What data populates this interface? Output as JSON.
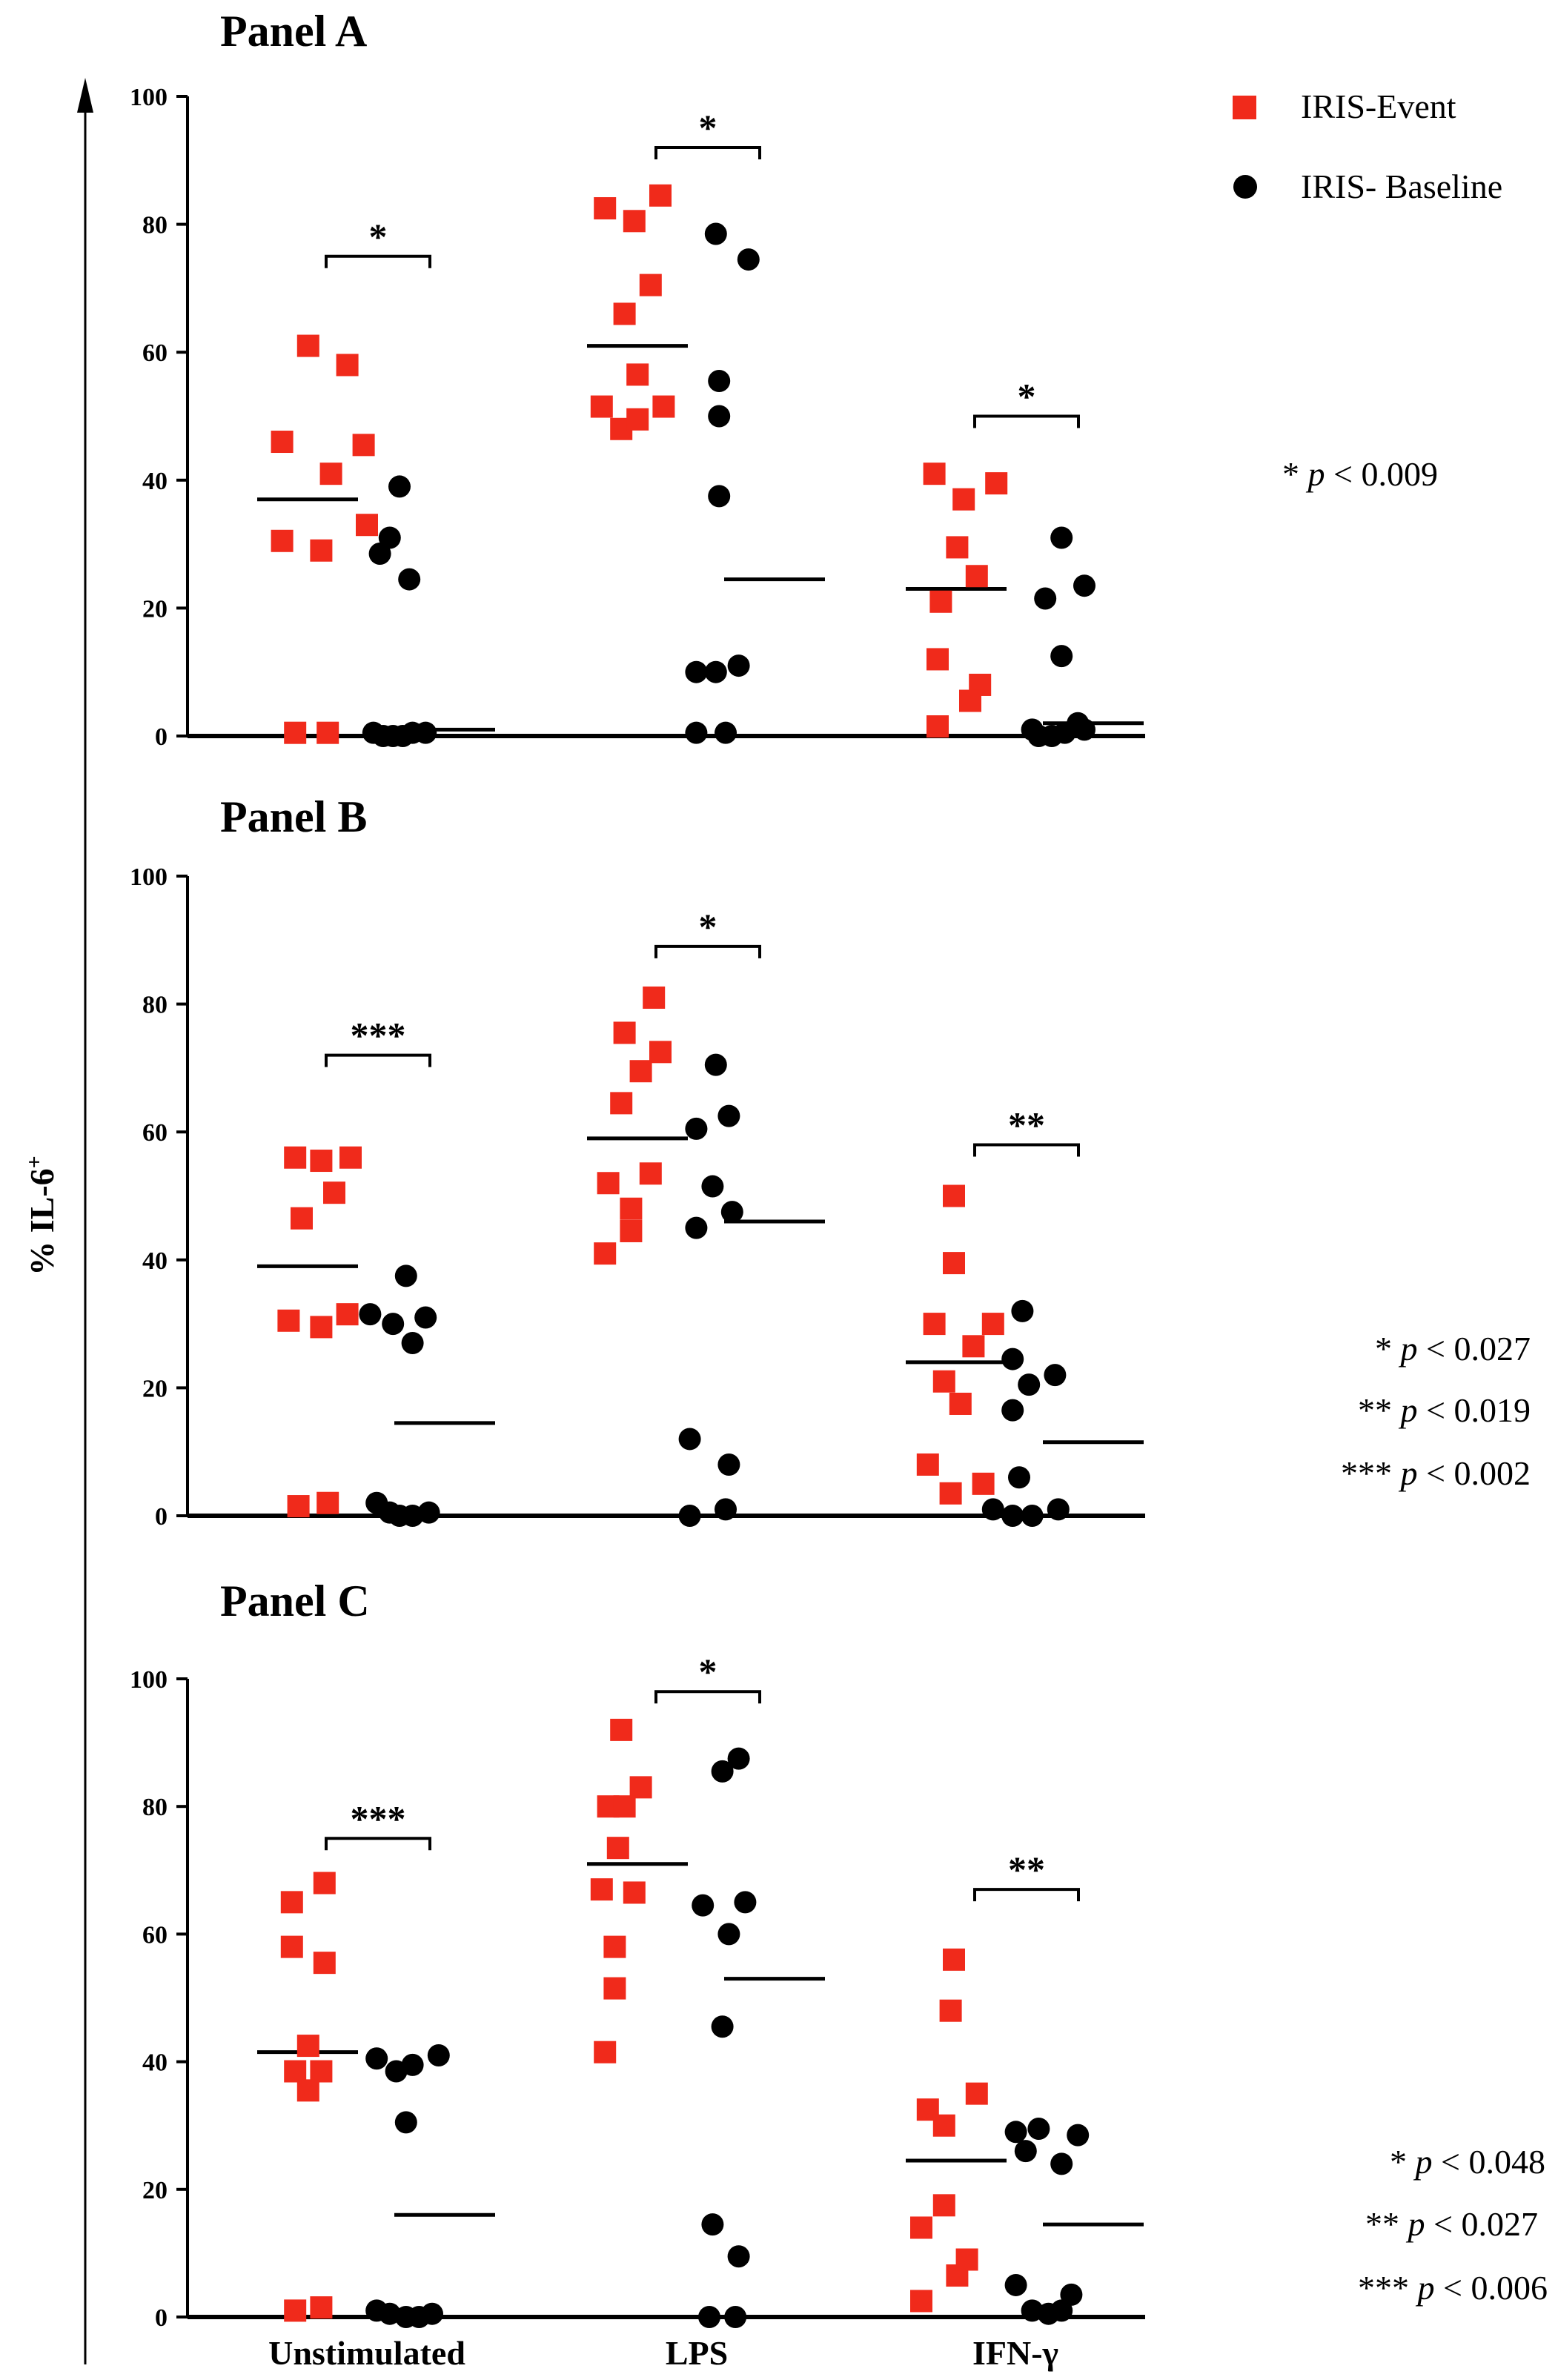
{
  "figure": {
    "ylabel": "% IL-6",
    "ylabel_sup": "+",
    "categories": [
      "Unstimulated",
      "LPS",
      "IFN-γ"
    ],
    "legend": [
      {
        "label": "IRIS-Event",
        "marker": "square",
        "color": "#f02a1b"
      },
      {
        "label": "IRIS- Baseline",
        "marker": "circle",
        "color": "#000000"
      }
    ]
  },
  "chart_data": [
    {
      "type": "scatter",
      "title": "Panel A",
      "ylim": [
        0,
        100
      ],
      "yticks": [
        0,
        20,
        40,
        60,
        80,
        100
      ],
      "categories": [
        "Unstimulated",
        "LPS",
        "IFN-γ"
      ],
      "series": [
        {
          "name": "IRIS-Event",
          "color": "#f02a1b",
          "marker": "square",
          "points": [
            {
              "x": 0.82,
              "y": 61
            },
            {
              "x": 0.89,
              "y": 41
            },
            {
              "x": 0.86,
              "y": 29
            },
            {
              "x": 0.74,
              "y": 46
            },
            {
              "x": 0.74,
              "y": 30.5
            },
            {
              "x": 0.78,
              "y": 0.5
            },
            {
              "x": 0.88,
              "y": 0.5
            },
            {
              "x": 0.94,
              "y": 58
            },
            {
              "x": 0.99,
              "y": 45.5
            },
            {
              "x": 1.0,
              "y": 33
            },
            {
              "x": 1.73,
              "y": 82.5
            },
            {
              "x": 1.82,
              "y": 80.5
            },
            {
              "x": 1.9,
              "y": 84.5
            },
            {
              "x": 1.79,
              "y": 66
            },
            {
              "x": 1.87,
              "y": 70.5
            },
            {
              "x": 1.83,
              "y": 56.5
            },
            {
              "x": 1.72,
              "y": 51.5
            },
            {
              "x": 1.78,
              "y": 48
            },
            {
              "x": 1.83,
              "y": 49.5
            },
            {
              "x": 1.91,
              "y": 51.5
            },
            {
              "x": 2.74,
              "y": 41
            },
            {
              "x": 2.83,
              "y": 37
            },
            {
              "x": 2.93,
              "y": 39.5
            },
            {
              "x": 2.81,
              "y": 29.5
            },
            {
              "x": 2.87,
              "y": 25
            },
            {
              "x": 2.76,
              "y": 21
            },
            {
              "x": 2.75,
              "y": 12
            },
            {
              "x": 2.88,
              "y": 8
            },
            {
              "x": 2.85,
              "y": 5.5
            },
            {
              "x": 2.75,
              "y": 1.5
            }
          ]
        },
        {
          "name": "IRIS- Baseline",
          "color": "#000000",
          "marker": "circle",
          "points": [
            {
              "x": 1.1,
              "y": 39
            },
            {
              "x": 1.07,
              "y": 31
            },
            {
              "x": 1.04,
              "y": 28.5
            },
            {
              "x": 1.13,
              "y": 24.5
            },
            {
              "x": 1.02,
              "y": 0.5
            },
            {
              "x": 1.05,
              "y": 0
            },
            {
              "x": 1.08,
              "y": 0
            },
            {
              "x": 1.11,
              "y": 0
            },
            {
              "x": 1.14,
              "y": 0.5
            },
            {
              "x": 1.18,
              "y": 0.5
            },
            {
              "x": 2.07,
              "y": 78.5
            },
            {
              "x": 2.17,
              "y": 74.5
            },
            {
              "x": 2.08,
              "y": 55.5
            },
            {
              "x": 2.08,
              "y": 50
            },
            {
              "x": 2.08,
              "y": 37.5
            },
            {
              "x": 2.01,
              "y": 10
            },
            {
              "x": 2.07,
              "y": 10
            },
            {
              "x": 2.14,
              "y": 11
            },
            {
              "x": 2.01,
              "y": 0.5
            },
            {
              "x": 2.1,
              "y": 0.5
            },
            {
              "x": 3.13,
              "y": 31
            },
            {
              "x": 3.2,
              "y": 23.5
            },
            {
              "x": 3.08,
              "y": 21.5
            },
            {
              "x": 3.13,
              "y": 12.5
            },
            {
              "x": 3.04,
              "y": 1
            },
            {
              "x": 3.18,
              "y": 2
            },
            {
              "x": 3.06,
              "y": 0
            },
            {
              "x": 3.1,
              "y": 0
            },
            {
              "x": 3.14,
              "y": 0.5
            },
            {
              "x": 3.2,
              "y": 1
            }
          ]
        }
      ],
      "means": [
        {
          "series": "IRIS-Event",
          "category": "Unstimulated",
          "y": 37
        },
        {
          "series": "IRIS- Baseline",
          "category": "Unstimulated",
          "y": 1
        },
        {
          "series": "IRIS-Event",
          "category": "LPS",
          "y": 61
        },
        {
          "series": "IRIS- Baseline",
          "category": "LPS",
          "y": 24.5
        },
        {
          "series": "IRIS-Event",
          "category": "IFN-γ",
          "y": 23
        },
        {
          "series": "IRIS- Baseline",
          "category": "IFN-γ",
          "y": 2
        }
      ],
      "brackets": [
        {
          "category": "Unstimulated",
          "label": "*",
          "y": 75
        },
        {
          "category": "LPS",
          "label": "*",
          "y": 92
        },
        {
          "category": "IFN-γ",
          "label": "*",
          "y": 50
        }
      ],
      "annotations": [
        "* p < 0.009"
      ]
    },
    {
      "type": "scatter",
      "title": "Panel B",
      "ylim": [
        0,
        100
      ],
      "yticks": [
        0,
        20,
        40,
        60,
        80,
        100
      ],
      "categories": [
        "Unstimulated",
        "LPS",
        "IFN-γ"
      ],
      "series": [
        {
          "name": "IRIS-Event",
          "color": "#f02a1b",
          "marker": "square",
          "points": [
            {
              "x": 0.78,
              "y": 56
            },
            {
              "x": 0.86,
              "y": 55.5
            },
            {
              "x": 0.95,
              "y": 56
            },
            {
              "x": 0.9,
              "y": 50.5
            },
            {
              "x": 0.8,
              "y": 46.5
            },
            {
              "x": 0.76,
              "y": 30.5
            },
            {
              "x": 0.86,
              "y": 29.5
            },
            {
              "x": 0.94,
              "y": 31.5
            },
            {
              "x": 0.79,
              "y": 1.5
            },
            {
              "x": 0.88,
              "y": 2
            },
            {
              "x": 1.88,
              "y": 81
            },
            {
              "x": 1.79,
              "y": 75.5
            },
            {
              "x": 1.9,
              "y": 72.5
            },
            {
              "x": 1.84,
              "y": 69.5
            },
            {
              "x": 1.78,
              "y": 64.5
            },
            {
              "x": 1.87,
              "y": 53.5
            },
            {
              "x": 1.74,
              "y": 52
            },
            {
              "x": 1.81,
              "y": 48
            },
            {
              "x": 1.73,
              "y": 41
            },
            {
              "x": 1.81,
              "y": 44.5
            },
            {
              "x": 2.8,
              "y": 50
            },
            {
              "x": 2.8,
              "y": 39.5
            },
            {
              "x": 2.74,
              "y": 30
            },
            {
              "x": 2.92,
              "y": 30
            },
            {
              "x": 2.86,
              "y": 26.5
            },
            {
              "x": 2.77,
              "y": 21
            },
            {
              "x": 2.82,
              "y": 17.5
            },
            {
              "x": 2.72,
              "y": 8
            },
            {
              "x": 2.79,
              "y": 3.5
            },
            {
              "x": 2.89,
              "y": 5
            }
          ]
        },
        {
          "name": "IRIS- Baseline",
          "color": "#000000",
          "marker": "circle",
          "points": [
            {
              "x": 1.12,
              "y": 37.5
            },
            {
              "x": 1.01,
              "y": 31.5
            },
            {
              "x": 1.08,
              "y": 30
            },
            {
              "x": 1.18,
              "y": 31
            },
            {
              "x": 1.14,
              "y": 27
            },
            {
              "x": 1.03,
              "y": 2
            },
            {
              "x": 1.07,
              "y": 0.5
            },
            {
              "x": 1.1,
              "y": 0
            },
            {
              "x": 1.14,
              "y": 0
            },
            {
              "x": 1.19,
              "y": 0.5
            },
            {
              "x": 2.07,
              "y": 70.5
            },
            {
              "x": 2.11,
              "y": 62.5
            },
            {
              "x": 2.01,
              "y": 60.5
            },
            {
              "x": 2.06,
              "y": 51.5
            },
            {
              "x": 2.12,
              "y": 47.5
            },
            {
              "x": 2.01,
              "y": 45
            },
            {
              "x": 1.99,
              "y": 12
            },
            {
              "x": 2.11,
              "y": 8
            },
            {
              "x": 1.99,
              "y": 0
            },
            {
              "x": 2.1,
              "y": 1
            },
            {
              "x": 3.01,
              "y": 32
            },
            {
              "x": 2.98,
              "y": 24.5
            },
            {
              "x": 3.11,
              "y": 22
            },
            {
              "x": 3.03,
              "y": 20.5
            },
            {
              "x": 2.98,
              "y": 16.5
            },
            {
              "x": 3.0,
              "y": 6
            },
            {
              "x": 2.92,
              "y": 1
            },
            {
              "x": 2.98,
              "y": 0
            },
            {
              "x": 3.04,
              "y": 0
            },
            {
              "x": 3.12,
              "y": 1
            }
          ]
        }
      ],
      "means": [
        {
          "series": "IRIS-Event",
          "category": "Unstimulated",
          "y": 39
        },
        {
          "series": "IRIS- Baseline",
          "category": "Unstimulated",
          "y": 14.5
        },
        {
          "series": "IRIS-Event",
          "category": "LPS",
          "y": 59
        },
        {
          "series": "IRIS- Baseline",
          "category": "LPS",
          "y": 46
        },
        {
          "series": "IRIS-Event",
          "category": "IFN-γ",
          "y": 24
        },
        {
          "series": "IRIS- Baseline",
          "category": "IFN-γ",
          "y": 11.5
        }
      ],
      "brackets": [
        {
          "category": "Unstimulated",
          "label": "***",
          "y": 72
        },
        {
          "category": "LPS",
          "label": "*",
          "y": 89
        },
        {
          "category": "IFN-γ",
          "label": "**",
          "y": 58
        }
      ],
      "annotations": [
        "* p <  0.027",
        "** p <  0.019",
        "*** p <  0.002"
      ]
    },
    {
      "type": "scatter",
      "title": "Panel C",
      "ylim": [
        0,
        100
      ],
      "yticks": [
        0,
        20,
        40,
        60,
        80,
        100
      ],
      "categories": [
        "Unstimulated",
        "LPS",
        "IFN-γ"
      ],
      "series": [
        {
          "name": "IRIS-Event",
          "color": "#f02a1b",
          "marker": "square",
          "points": [
            {
              "x": 0.87,
              "y": 68
            },
            {
              "x": 0.77,
              "y": 65
            },
            {
              "x": 0.77,
              "y": 58
            },
            {
              "x": 0.87,
              "y": 55.5
            },
            {
              "x": 0.82,
              "y": 42.5
            },
            {
              "x": 0.78,
              "y": 38.5
            },
            {
              "x": 0.86,
              "y": 38.5
            },
            {
              "x": 0.82,
              "y": 35.5
            },
            {
              "x": 0.78,
              "y": 1
            },
            {
              "x": 0.86,
              "y": 1.5
            },
            {
              "x": 1.78,
              "y": 92
            },
            {
              "x": 1.84,
              "y": 83
            },
            {
              "x": 1.74,
              "y": 80
            },
            {
              "x": 1.79,
              "y": 80
            },
            {
              "x": 1.77,
              "y": 73.5
            },
            {
              "x": 1.72,
              "y": 67
            },
            {
              "x": 1.82,
              "y": 66.5
            },
            {
              "x": 1.76,
              "y": 58
            },
            {
              "x": 1.76,
              "y": 51.5
            },
            {
              "x": 1.73,
              "y": 41.5
            },
            {
              "x": 2.8,
              "y": 56
            },
            {
              "x": 2.79,
              "y": 48
            },
            {
              "x": 2.72,
              "y": 32.5
            },
            {
              "x": 2.87,
              "y": 35
            },
            {
              "x": 2.77,
              "y": 30
            },
            {
              "x": 2.7,
              "y": 14
            },
            {
              "x": 2.77,
              "y": 17.5
            },
            {
              "x": 2.81,
              "y": 6.5
            },
            {
              "x": 2.84,
              "y": 9
            },
            {
              "x": 2.7,
              "y": 2.5
            }
          ]
        },
        {
          "name": "IRIS- Baseline",
          "color": "#000000",
          "marker": "circle",
          "points": [
            {
              "x": 1.03,
              "y": 40.5
            },
            {
              "x": 1.09,
              "y": 38.5
            },
            {
              "x": 1.14,
              "y": 39.5
            },
            {
              "x": 1.22,
              "y": 41
            },
            {
              "x": 1.12,
              "y": 30.5
            },
            {
              "x": 1.03,
              "y": 1
            },
            {
              "x": 1.07,
              "y": 0.5
            },
            {
              "x": 1.12,
              "y": 0
            },
            {
              "x": 1.16,
              "y": 0
            },
            {
              "x": 1.2,
              "y": 0.5
            },
            {
              "x": 2.14,
              "y": 87.5
            },
            {
              "x": 2.09,
              "y": 85.5
            },
            {
              "x": 2.03,
              "y": 64.5
            },
            {
              "x": 2.16,
              "y": 65
            },
            {
              "x": 2.11,
              "y": 60
            },
            {
              "x": 2.09,
              "y": 45.5
            },
            {
              "x": 2.06,
              "y": 14.5
            },
            {
              "x": 2.14,
              "y": 9.5
            },
            {
              "x": 2.05,
              "y": 0
            },
            {
              "x": 2.13,
              "y": 0
            },
            {
              "x": 2.99,
              "y": 29
            },
            {
              "x": 3.06,
              "y": 29.5
            },
            {
              "x": 3.18,
              "y": 28.5
            },
            {
              "x": 3.02,
              "y": 26
            },
            {
              "x": 3.13,
              "y": 24
            },
            {
              "x": 2.99,
              "y": 5
            },
            {
              "x": 3.16,
              "y": 3.5
            },
            {
              "x": 3.04,
              "y": 1
            },
            {
              "x": 3.09,
              "y": 0.5
            },
            {
              "x": 3.13,
              "y": 1
            }
          ]
        }
      ],
      "means": [
        {
          "series": "IRIS-Event",
          "category": "Unstimulated",
          "y": 41.5
        },
        {
          "series": "IRIS- Baseline",
          "category": "Unstimulated",
          "y": 16
        },
        {
          "series": "IRIS-Event",
          "category": "LPS",
          "y": 71
        },
        {
          "series": "IRIS- Baseline",
          "category": "LPS",
          "y": 53
        },
        {
          "series": "IRIS-Event",
          "category": "IFN-γ",
          "y": 24.5
        },
        {
          "series": "IRIS- Baseline",
          "category": "IFN-γ",
          "y": 14.5
        }
      ],
      "brackets": [
        {
          "category": "Unstimulated",
          "label": "***",
          "y": 75
        },
        {
          "category": "LPS",
          "label": "*",
          "y": 98
        },
        {
          "category": "IFN-γ",
          "label": "**",
          "y": 67
        }
      ],
      "annotations": [
        "* p < 0.048",
        "** p < 0.027",
        "*** p <  0.006"
      ]
    }
  ]
}
